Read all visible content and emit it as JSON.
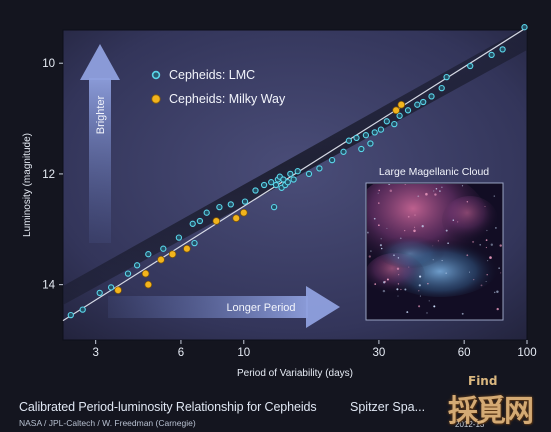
{
  "chart_data": {
    "type": "scatter",
    "title": "",
    "xlabel": "Period of Variability (days)",
    "ylabel": "Luminosity (magnitude)",
    "x_scale": "log",
    "xlim": [
      2.3,
      100
    ],
    "ylim": [
      15.0,
      9.4
    ],
    "x_ticks": [
      3,
      6,
      10,
      30,
      60,
      100
    ],
    "x_tick_labels": [
      "3",
      "6",
      "10",
      "30",
      "60",
      "100"
    ],
    "y_ticks": [
      10,
      12,
      14
    ],
    "y_tick_labels": [
      "10",
      "12",
      "14"
    ],
    "grid": false,
    "legend_position": "top-left",
    "fit_line": {
      "x": [
        2.3,
        100
      ],
      "y": [
        14.65,
        9.35
      ]
    },
    "series": [
      {
        "name": "Cepheids: LMC",
        "color": "#5ad6ea",
        "points": [
          [
            2.45,
            14.55
          ],
          [
            2.7,
            14.45
          ],
          [
            3.1,
            14.15
          ],
          [
            3.4,
            14.05
          ],
          [
            3.9,
            13.8
          ],
          [
            4.2,
            13.65
          ],
          [
            4.6,
            13.45
          ],
          [
            5.2,
            13.35
          ],
          [
            5.9,
            13.15
          ],
          [
            6.6,
            12.9
          ],
          [
            6.7,
            13.25
          ],
          [
            7.0,
            12.85
          ],
          [
            7.4,
            12.7
          ],
          [
            8.2,
            12.6
          ],
          [
            9.0,
            12.55
          ],
          [
            10.1,
            12.5
          ],
          [
            11.0,
            12.3
          ],
          [
            11.8,
            12.2
          ],
          [
            12.5,
            12.15
          ],
          [
            13.0,
            12.2
          ],
          [
            13.2,
            12.1
          ],
          [
            13.4,
            12.05
          ],
          [
            13.6,
            12.25
          ],
          [
            13.8,
            12.1
          ],
          [
            14.0,
            12.2
          ],
          [
            14.3,
            12.15
          ],
          [
            14.6,
            12.0
          ],
          [
            15.0,
            12.1
          ],
          [
            15.5,
            11.95
          ],
          [
            12.8,
            12.6
          ],
          [
            17.0,
            12.0
          ],
          [
            18.5,
            11.9
          ],
          [
            20.5,
            11.75
          ],
          [
            22.5,
            11.6
          ],
          [
            23.5,
            11.4
          ],
          [
            25.0,
            11.35
          ],
          [
            26.0,
            11.55
          ],
          [
            27.0,
            11.3
          ],
          [
            28.0,
            11.45
          ],
          [
            29.0,
            11.25
          ],
          [
            30.5,
            11.2
          ],
          [
            32.0,
            11.05
          ],
          [
            34.0,
            11.1
          ],
          [
            35.5,
            10.95
          ],
          [
            38.0,
            10.85
          ],
          [
            41.0,
            10.75
          ],
          [
            43.0,
            10.7
          ],
          [
            46.0,
            10.6
          ],
          [
            50.0,
            10.45
          ],
          [
            52.0,
            10.25
          ],
          [
            63.0,
            10.05
          ],
          [
            75.0,
            9.85
          ],
          [
            82.0,
            9.75
          ],
          [
            98.0,
            9.35
          ]
        ]
      },
      {
        "name": "Cepheids: Milky Way",
        "color": "#f2b41d",
        "points": [
          [
            3.6,
            14.1
          ],
          [
            4.5,
            13.8
          ],
          [
            4.6,
            14.0
          ],
          [
            5.1,
            13.55
          ],
          [
            5.6,
            13.45
          ],
          [
            6.3,
            13.35
          ],
          [
            8.0,
            12.85
          ],
          [
            9.4,
            12.8
          ],
          [
            10.0,
            12.7
          ],
          [
            34.5,
            10.85
          ],
          [
            36.0,
            10.75
          ]
        ]
      }
    ],
    "annotations": {
      "brighter": "Brighter",
      "longer_period": "Longer Period",
      "inset_title": "Large Magellanic Cloud"
    }
  },
  "caption": {
    "title": "Calibrated Period-luminosity Relationship for Cepheids",
    "credit": "NASA / JPL-Caltech / W. Freedman (Carnegie)",
    "mission": "Spitzer Spa...",
    "date": "2012-13"
  },
  "watermark": {
    "main": "採覓网",
    "sub": "Find"
  }
}
